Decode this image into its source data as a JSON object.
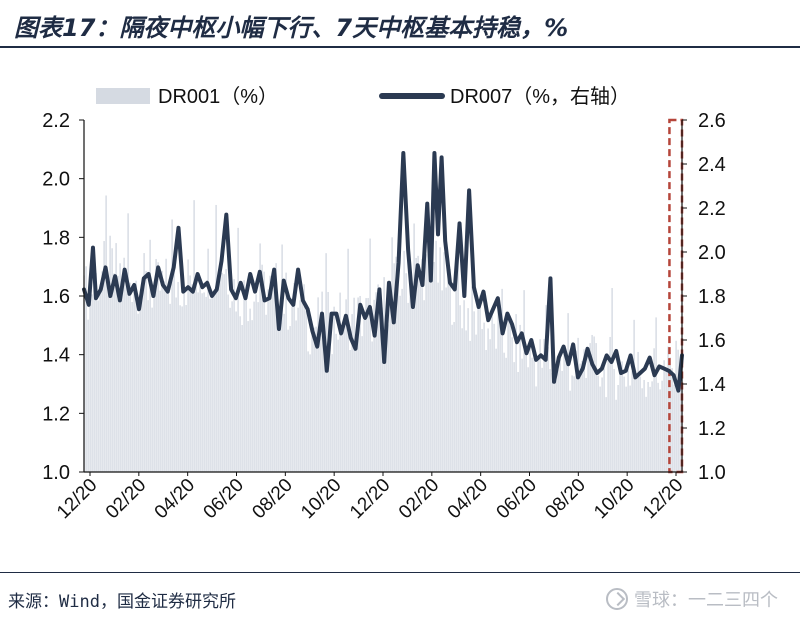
{
  "figure": {
    "title": "图表17：隔夜中枢小幅下行、7天中枢基本持稳，%",
    "source": "来源：Wind，国金证券研究所",
    "watermark": "雪球：一二三四个"
  },
  "colors": {
    "bars": "#d5dae2",
    "line": "#2b3a52",
    "highlight_box": "#b5453a",
    "axis": "#111111"
  },
  "chart_data": {
    "type": "bar+line",
    "legend": {
      "placement": "top",
      "entries": [
        "DR001（%）",
        "DR007（%，右轴）"
      ]
    },
    "x_tick_labels": [
      "12/20",
      "02/20",
      "04/20",
      "06/20",
      "08/20",
      "10/20",
      "12/20",
      "02/20",
      "04/20",
      "06/20",
      "08/20",
      "10/20",
      "12/20"
    ],
    "y_left": {
      "min": 1.0,
      "max": 2.2,
      "ticks": [
        "1.0",
        "1.2",
        "1.4",
        "1.6",
        "1.8",
        "2.0",
        "2.2"
      ]
    },
    "y_right": {
      "min": 1.0,
      "max": 2.6,
      "ticks": [
        "1.0",
        "1.2",
        "1.4",
        "1.6",
        "1.8",
        "2.0",
        "2.2",
        "2.4",
        "2.6"
      ]
    },
    "grid": false,
    "highlight": {
      "style": "dashed-box",
      "x_from": 0.979,
      "x_to": 1.0
    },
    "series": [
      {
        "name": "DR001（%）",
        "kind": "bar",
        "axis": "left",
        "anchors": [
          [
            0.0,
            1.6
          ],
          [
            0.04,
            1.7
          ],
          [
            0.08,
            1.66
          ],
          [
            0.12,
            1.62
          ],
          [
            0.18,
            1.66
          ],
          [
            0.23,
            1.72
          ],
          [
            0.26,
            1.6
          ],
          [
            0.32,
            1.62
          ],
          [
            0.38,
            1.5
          ],
          [
            0.44,
            1.52
          ],
          [
            0.49,
            1.54
          ],
          [
            0.53,
            1.66
          ],
          [
            0.58,
            1.7
          ],
          [
            0.62,
            1.6
          ],
          [
            0.66,
            1.5
          ],
          [
            0.7,
            1.46
          ],
          [
            0.76,
            1.38
          ],
          [
            0.82,
            1.36
          ],
          [
            0.87,
            1.36
          ],
          [
            0.92,
            1.34
          ],
          [
            0.96,
            1.34
          ],
          [
            1.0,
            1.34
          ]
        ]
      },
      {
        "name": "DR007（%，右轴）",
        "kind": "line",
        "axis": "right",
        "anchors": [
          [
            0.0,
            1.83
          ],
          [
            0.008,
            1.76
          ],
          [
            0.015,
            2.02
          ],
          [
            0.02,
            1.79
          ],
          [
            0.028,
            1.83
          ],
          [
            0.036,
            1.93
          ],
          [
            0.044,
            1.8
          ],
          [
            0.052,
            1.89
          ],
          [
            0.06,
            1.78
          ],
          [
            0.068,
            1.92
          ],
          [
            0.076,
            1.81
          ],
          [
            0.084,
            1.85
          ],
          [
            0.092,
            1.74
          ],
          [
            0.1,
            1.88
          ],
          [
            0.108,
            1.9
          ],
          [
            0.116,
            1.8
          ],
          [
            0.124,
            1.93
          ],
          [
            0.132,
            1.85
          ],
          [
            0.14,
            1.82
          ],
          [
            0.15,
            1.93
          ],
          [
            0.158,
            2.11
          ],
          [
            0.166,
            1.82
          ],
          [
            0.174,
            1.84
          ],
          [
            0.182,
            1.82
          ],
          [
            0.19,
            1.9
          ],
          [
            0.198,
            1.84
          ],
          [
            0.206,
            1.86
          ],
          [
            0.214,
            1.8
          ],
          [
            0.222,
            1.83
          ],
          [
            0.23,
            1.96
          ],
          [
            0.238,
            2.17
          ],
          [
            0.246,
            1.83
          ],
          [
            0.254,
            1.79
          ],
          [
            0.262,
            1.86
          ],
          [
            0.27,
            1.79
          ],
          [
            0.278,
            1.9
          ],
          [
            0.286,
            1.82
          ],
          [
            0.294,
            1.91
          ],
          [
            0.302,
            1.78
          ],
          [
            0.31,
            1.79
          ],
          [
            0.318,
            1.92
          ],
          [
            0.326,
            1.65
          ],
          [
            0.334,
            1.87
          ],
          [
            0.342,
            1.79
          ],
          [
            0.35,
            1.76
          ],
          [
            0.358,
            1.92
          ],
          [
            0.366,
            1.78
          ],
          [
            0.374,
            1.74
          ],
          [
            0.382,
            1.64
          ],
          [
            0.39,
            1.57
          ],
          [
            0.398,
            1.72
          ],
          [
            0.406,
            1.46
          ],
          [
            0.414,
            1.72
          ],
          [
            0.422,
            1.72
          ],
          [
            0.43,
            1.63
          ],
          [
            0.438,
            1.71
          ],
          [
            0.446,
            1.61
          ],
          [
            0.454,
            1.56
          ],
          [
            0.462,
            1.76
          ],
          [
            0.47,
            1.7
          ],
          [
            0.478,
            1.75
          ],
          [
            0.486,
            1.62
          ],
          [
            0.494,
            1.83
          ],
          [
            0.502,
            1.5
          ],
          [
            0.51,
            1.86
          ],
          [
            0.518,
            1.68
          ],
          [
            0.526,
            1.95
          ],
          [
            0.534,
            2.45
          ],
          [
            0.542,
            2.01
          ],
          [
            0.55,
            1.75
          ],
          [
            0.558,
            1.94
          ],
          [
            0.566,
            1.85
          ],
          [
            0.574,
            2.22
          ],
          [
            0.58,
            1.87
          ],
          [
            0.586,
            2.45
          ],
          [
            0.592,
            2.08
          ],
          [
            0.598,
            2.43
          ],
          [
            0.604,
            2.05
          ],
          [
            0.612,
            1.86
          ],
          [
            0.62,
            1.83
          ],
          [
            0.628,
            2.13
          ],
          [
            0.636,
            1.8
          ],
          [
            0.644,
            2.28
          ],
          [
            0.652,
            1.84
          ],
          [
            0.66,
            1.75
          ],
          [
            0.668,
            1.82
          ],
          [
            0.676,
            1.69
          ],
          [
            0.684,
            1.74
          ],
          [
            0.692,
            1.79
          ],
          [
            0.7,
            1.63
          ],
          [
            0.708,
            1.72
          ],
          [
            0.716,
            1.67
          ],
          [
            0.724,
            1.59
          ],
          [
            0.732,
            1.63
          ],
          [
            0.74,
            1.54
          ],
          [
            0.748,
            1.6
          ],
          [
            0.756,
            1.51
          ],
          [
            0.764,
            1.53
          ],
          [
            0.772,
            1.51
          ],
          [
            0.78,
            1.88
          ],
          [
            0.786,
            1.41
          ],
          [
            0.794,
            1.52
          ],
          [
            0.802,
            1.57
          ],
          [
            0.81,
            1.49
          ],
          [
            0.818,
            1.58
          ],
          [
            0.826,
            1.43
          ],
          [
            0.834,
            1.47
          ],
          [
            0.842,
            1.56
          ],
          [
            0.85,
            1.49
          ],
          [
            0.858,
            1.45
          ],
          [
            0.866,
            1.47
          ],
          [
            0.874,
            1.53
          ],
          [
            0.882,
            1.5
          ],
          [
            0.89,
            1.55
          ],
          [
            0.898,
            1.45
          ],
          [
            0.906,
            1.46
          ],
          [
            0.914,
            1.53
          ],
          [
            0.922,
            1.43
          ],
          [
            0.93,
            1.45
          ],
          [
            0.938,
            1.47
          ],
          [
            0.946,
            1.52
          ],
          [
            0.954,
            1.44
          ],
          [
            0.962,
            1.48
          ],
          [
            0.97,
            1.47
          ],
          [
            0.978,
            1.46
          ],
          [
            0.986,
            1.44
          ],
          [
            0.994,
            1.37
          ],
          [
            1.0,
            1.53
          ]
        ]
      }
    ]
  }
}
